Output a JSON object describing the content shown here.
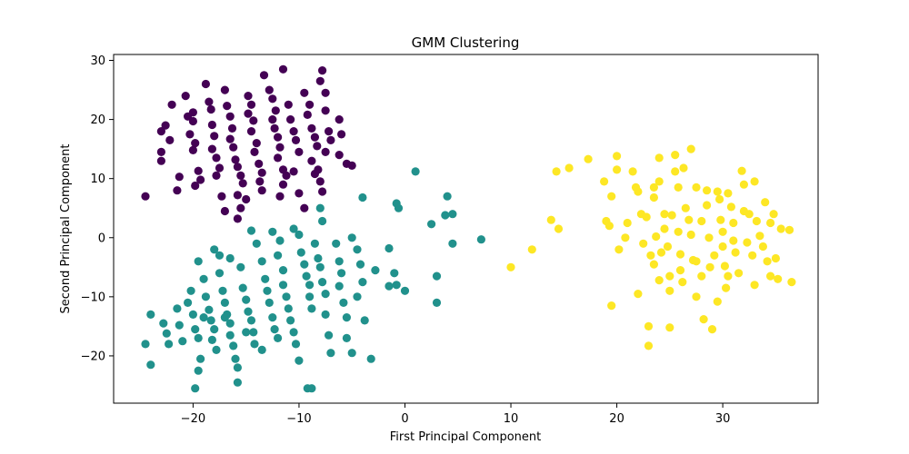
{
  "chart_data": {
    "type": "scatter",
    "title": "GMM Clustering",
    "xlabel": "First Principal Component",
    "ylabel": "Second Principal Component",
    "xlim": [
      -27.5,
      39
    ],
    "ylim": [
      -28,
      31
    ],
    "xticks": [
      -20,
      -10,
      0,
      10,
      20,
      30
    ],
    "yticks": [
      -20,
      -10,
      0,
      10,
      20,
      30
    ],
    "grid": false,
    "series": [
      {
        "color": "#440154",
        "points": [
          [
            -24.5,
            7
          ],
          [
            -23,
            18
          ],
          [
            -22.6,
            19
          ],
          [
            -23,
            14.5
          ],
          [
            -23,
            13
          ],
          [
            -22.2,
            16.5
          ],
          [
            -22,
            22.5
          ],
          [
            -21.3,
            10.3
          ],
          [
            -20.7,
            24
          ],
          [
            -20.5,
            20.5
          ],
          [
            -20,
            21.2
          ],
          [
            -20,
            19.7
          ],
          [
            -20.3,
            17.5
          ],
          [
            -19.8,
            16
          ],
          [
            -20,
            14.8
          ],
          [
            -19.5,
            11.3
          ],
          [
            -19.3,
            9.8
          ],
          [
            -19.8,
            8.8
          ],
          [
            -18.8,
            26
          ],
          [
            -18.5,
            23
          ],
          [
            -18.3,
            21.7
          ],
          [
            -18.2,
            19.1
          ],
          [
            -18,
            17.2
          ],
          [
            -18.2,
            15
          ],
          [
            -17.8,
            13.5
          ],
          [
            -17.5,
            11.8
          ],
          [
            -17.8,
            10.5
          ],
          [
            -17.3,
            7
          ],
          [
            -17,
            25
          ],
          [
            -16.8,
            22.3
          ],
          [
            -16.5,
            20.5
          ],
          [
            -16.3,
            18.5
          ],
          [
            -16.5,
            16.7
          ],
          [
            -16.2,
            15.3
          ],
          [
            -16,
            13.2
          ],
          [
            -15.8,
            12
          ],
          [
            -15.5,
            10.5
          ],
          [
            -15.3,
            9.2
          ],
          [
            -15.8,
            7.2
          ],
          [
            -15.5,
            5
          ],
          [
            -15.8,
            3.2
          ],
          [
            -14.8,
            24
          ],
          [
            -14.5,
            22.5
          ],
          [
            -14.8,
            21
          ],
          [
            -14.3,
            19.8
          ],
          [
            -14.5,
            18
          ],
          [
            -14,
            16
          ],
          [
            -14.2,
            14.5
          ],
          [
            -13.8,
            12.5
          ],
          [
            -13.5,
            11
          ],
          [
            -13.7,
            9.5
          ],
          [
            -13.5,
            8
          ],
          [
            -13.3,
            27.5
          ],
          [
            -12.8,
            25
          ],
          [
            -12.5,
            23.5
          ],
          [
            -12.2,
            21.5
          ],
          [
            -12.5,
            20
          ],
          [
            -12.3,
            18.5
          ],
          [
            -12,
            17
          ],
          [
            -11.8,
            15.3
          ],
          [
            -12,
            13.5
          ],
          [
            -11.5,
            11.5
          ],
          [
            -11.2,
            10.5
          ],
          [
            -11.5,
            9
          ],
          [
            -11.8,
            7
          ],
          [
            -11.5,
            28.5
          ],
          [
            -11,
            22.5
          ],
          [
            -10.8,
            20
          ],
          [
            -10.5,
            18
          ],
          [
            -10.3,
            16.5
          ],
          [
            -10,
            14.5
          ],
          [
            -10.5,
            11.2
          ],
          [
            -10,
            7.5
          ],
          [
            -9.5,
            5
          ],
          [
            -9.5,
            24.5
          ],
          [
            -9,
            22.5
          ],
          [
            -9.2,
            20.8
          ],
          [
            -8.8,
            18.5
          ],
          [
            -8.5,
            17
          ],
          [
            -8.3,
            15.5
          ],
          [
            -8.8,
            13
          ],
          [
            -8.5,
            10.8
          ],
          [
            -8,
            26.5
          ],
          [
            -7.8,
            28.3
          ],
          [
            -7.5,
            24.5
          ],
          [
            -7.5,
            21.5
          ],
          [
            -7.2,
            18
          ],
          [
            -7,
            16.5
          ],
          [
            -7.8,
            7.8
          ],
          [
            -6.2,
            14
          ],
          [
            -6,
            17.5
          ],
          [
            -6.2,
            20
          ],
          [
            -5.5,
            12.5
          ],
          [
            -5,
            12.2
          ],
          [
            -7.5,
            14.5
          ],
          [
            -8.2,
            11.5
          ],
          [
            -8,
            9.5
          ],
          [
            -21.5,
            8
          ],
          [
            -17,
            4.5
          ],
          [
            -15,
            6.5
          ]
        ]
      },
      {
        "color": "#21918c",
        "points": [
          [
            -24.5,
            -18
          ],
          [
            -24,
            -21.5
          ],
          [
            -24,
            -13
          ],
          [
            -22.8,
            -14.5
          ],
          [
            -22.5,
            -16.2
          ],
          [
            -22.3,
            -18
          ],
          [
            -21.5,
            -12
          ],
          [
            -21.3,
            -14.8
          ],
          [
            -21,
            -17.5
          ],
          [
            -20.5,
            -11
          ],
          [
            -20.2,
            -9
          ],
          [
            -20,
            -13
          ],
          [
            -19.8,
            -15.5
          ],
          [
            -19.5,
            -17
          ],
          [
            -19.3,
            -20.5
          ],
          [
            -19.5,
            -22.5
          ],
          [
            -19.8,
            -25.5
          ],
          [
            -19.5,
            -4
          ],
          [
            -19,
            -7
          ],
          [
            -18.8,
            -10
          ],
          [
            -18.5,
            -12.2
          ],
          [
            -18.3,
            -14
          ],
          [
            -18,
            -15.5
          ],
          [
            -18.2,
            -17.3
          ],
          [
            -17.8,
            -19
          ],
          [
            -17.5,
            -3
          ],
          [
            -17.5,
            -6
          ],
          [
            -17.2,
            -9
          ],
          [
            -17,
            -11
          ],
          [
            -16.8,
            -13
          ],
          [
            -16.5,
            -14.5
          ],
          [
            -16.5,
            -16.5
          ],
          [
            -16.2,
            -18.3
          ],
          [
            -16,
            -20.5
          ],
          [
            -15.8,
            -22
          ],
          [
            -15.8,
            -24.5
          ],
          [
            -15.5,
            -5
          ],
          [
            -15.3,
            -8.5
          ],
          [
            -15,
            -10.5
          ],
          [
            -14.8,
            -12.5
          ],
          [
            -14.5,
            -14
          ],
          [
            -14.3,
            -16
          ],
          [
            -14.2,
            -18
          ],
          [
            -14,
            -1
          ],
          [
            -14.5,
            1.2
          ],
          [
            -13.5,
            -4
          ],
          [
            -13.2,
            -7
          ],
          [
            -13,
            -9
          ],
          [
            -12.8,
            -11
          ],
          [
            -12.5,
            -13.5
          ],
          [
            -12.3,
            -15.5
          ],
          [
            -12,
            -17
          ],
          [
            -12,
            -3
          ],
          [
            -11.8,
            -0.5
          ],
          [
            -11.5,
            -5.5
          ],
          [
            -11.5,
            -8
          ],
          [
            -11.2,
            -10
          ],
          [
            -11,
            -12
          ],
          [
            -10.8,
            -14
          ],
          [
            -10.5,
            -16
          ],
          [
            -10.3,
            -18
          ],
          [
            -10,
            -20.8
          ],
          [
            -10,
            0.5
          ],
          [
            -9.8,
            -2.5
          ],
          [
            -9.5,
            -4.5
          ],
          [
            -9.3,
            -6.5
          ],
          [
            -9,
            -8
          ],
          [
            -9,
            -10
          ],
          [
            -8.8,
            -12
          ],
          [
            -9.2,
            -25.5
          ],
          [
            -8.8,
            -25.5
          ],
          [
            -8.5,
            -1
          ],
          [
            -8.2,
            -3.5
          ],
          [
            -8,
            -5
          ],
          [
            -7.8,
            -7.5
          ],
          [
            -7.5,
            -9.5
          ],
          [
            -7.5,
            -13
          ],
          [
            -7.2,
            -16.5
          ],
          [
            -7,
            -19.5
          ],
          [
            -7.8,
            2.8
          ],
          [
            -8,
            5
          ],
          [
            -6.5,
            -1
          ],
          [
            -6.2,
            -4
          ],
          [
            -6,
            -6
          ],
          [
            -6.2,
            -8.2
          ],
          [
            -5.8,
            -11
          ],
          [
            -5.5,
            -13.5
          ],
          [
            -5.5,
            -17
          ],
          [
            -5,
            -19.5
          ],
          [
            -5,
            0
          ],
          [
            -4.5,
            -2
          ],
          [
            -4.2,
            -4.5
          ],
          [
            -4,
            -7.5
          ],
          [
            -4.5,
            -10
          ],
          [
            -4,
            6.8
          ],
          [
            -3.8,
            -14
          ],
          [
            -3.2,
            -20.5
          ],
          [
            -2.8,
            -5.5
          ],
          [
            -1.5,
            -1.8
          ],
          [
            -1,
            -6
          ],
          [
            -0.8,
            -8
          ],
          [
            -1.5,
            -8.2
          ],
          [
            -0.8,
            5.8
          ],
          [
            -0.6,
            5
          ],
          [
            0,
            -9
          ],
          [
            1,
            11.2
          ],
          [
            2.5,
            2.3
          ],
          [
            3,
            -6.5
          ],
          [
            3,
            -11
          ],
          [
            3.8,
            3.8
          ],
          [
            4,
            7
          ],
          [
            4.5,
            4
          ],
          [
            4.5,
            -1
          ],
          [
            7.2,
            -0.3
          ],
          [
            -16.5,
            -3.5
          ],
          [
            -18,
            -2
          ],
          [
            -12.5,
            1
          ],
          [
            -10.5,
            1.5
          ],
          [
            -13.5,
            -19
          ],
          [
            -15,
            -16
          ],
          [
            -17,
            -13.5
          ],
          [
            -19,
            -13.5
          ]
        ]
      },
      {
        "color": "#fde725",
        "points": [
          [
            10,
            -5
          ],
          [
            12,
            -2
          ],
          [
            13.8,
            3
          ],
          [
            14.3,
            11.2
          ],
          [
            14.5,
            1.5
          ],
          [
            15.5,
            11.8
          ],
          [
            17.3,
            13.3
          ],
          [
            18.8,
            9.5
          ],
          [
            19,
            2.8
          ],
          [
            19.3,
            2
          ],
          [
            19.5,
            7
          ],
          [
            19.5,
            -11.5
          ],
          [
            20,
            13.8
          ],
          [
            20,
            11.5
          ],
          [
            20.2,
            -2
          ],
          [
            20.8,
            0
          ],
          [
            21,
            2.5
          ],
          [
            21.5,
            11.2
          ],
          [
            21.8,
            8.5
          ],
          [
            22,
            7.8
          ],
          [
            22.3,
            4
          ],
          [
            22.5,
            -1
          ],
          [
            22.8,
            3.5
          ],
          [
            23,
            -15
          ],
          [
            23,
            -18.3
          ],
          [
            23.2,
            -3
          ],
          [
            23.5,
            6.8
          ],
          [
            23.5,
            -4.5
          ],
          [
            23.7,
            0.2
          ],
          [
            24,
            13.5
          ],
          [
            24,
            9.5
          ],
          [
            24.2,
            -2.5
          ],
          [
            24.5,
            4
          ],
          [
            24.5,
            1.5
          ],
          [
            24.8,
            -1.5
          ],
          [
            25,
            -6.5
          ],
          [
            25,
            -9
          ],
          [
            25.2,
            3.8
          ],
          [
            25.5,
            11.2
          ],
          [
            25.5,
            14
          ],
          [
            25.8,
            8.5
          ],
          [
            25.8,
            1
          ],
          [
            26,
            -2.8
          ],
          [
            26.2,
            -7.5
          ],
          [
            26.3,
            11.8
          ],
          [
            26.5,
            5
          ],
          [
            26.8,
            3
          ],
          [
            27,
            15
          ],
          [
            27,
            0.5
          ],
          [
            27.2,
            -3.8
          ],
          [
            27.5,
            8.5
          ],
          [
            27.5,
            -10
          ],
          [
            28,
            2.8
          ],
          [
            28,
            -6.5
          ],
          [
            28.2,
            -13.8
          ],
          [
            28.5,
            8
          ],
          [
            28.5,
            5.5
          ],
          [
            28.7,
            0
          ],
          [
            28.8,
            -5
          ],
          [
            29,
            -15.5
          ],
          [
            29.2,
            -3
          ],
          [
            29.5,
            7.8
          ],
          [
            29.7,
            6.5
          ],
          [
            29.8,
            3
          ],
          [
            30,
            1
          ],
          [
            30,
            -1.5
          ],
          [
            30.2,
            -4.8
          ],
          [
            30.3,
            -8.5
          ],
          [
            30.5,
            7.5
          ],
          [
            30.8,
            5.2
          ],
          [
            31,
            2.5
          ],
          [
            31,
            -0.5
          ],
          [
            31.2,
            -2.5
          ],
          [
            31.5,
            -6
          ],
          [
            31.8,
            11.3
          ],
          [
            32,
            9
          ],
          [
            32,
            4.5
          ],
          [
            32.3,
            -0.8
          ],
          [
            32.5,
            4
          ],
          [
            32.8,
            -3
          ],
          [
            33,
            9.5
          ],
          [
            33.2,
            2.8
          ],
          [
            33.5,
            0.3
          ],
          [
            33.8,
            -1.5
          ],
          [
            34,
            6
          ],
          [
            34.2,
            -4
          ],
          [
            34.5,
            2.5
          ],
          [
            34.8,
            4
          ],
          [
            35,
            -3.5
          ],
          [
            35.2,
            -7
          ],
          [
            35.5,
            1.5
          ],
          [
            36.3,
            1.3
          ],
          [
            36.5,
            -7.5
          ],
          [
            23.5,
            8.5
          ],
          [
            25,
            -15.2
          ],
          [
            26,
            -5.5
          ],
          [
            27.5,
            -4
          ],
          [
            29.5,
            -10.8
          ],
          [
            30.5,
            -6.5
          ],
          [
            33,
            -8
          ],
          [
            34.5,
            -6.5
          ],
          [
            22,
            -9.5
          ],
          [
            24,
            -7.2
          ]
        ]
      }
    ]
  }
}
